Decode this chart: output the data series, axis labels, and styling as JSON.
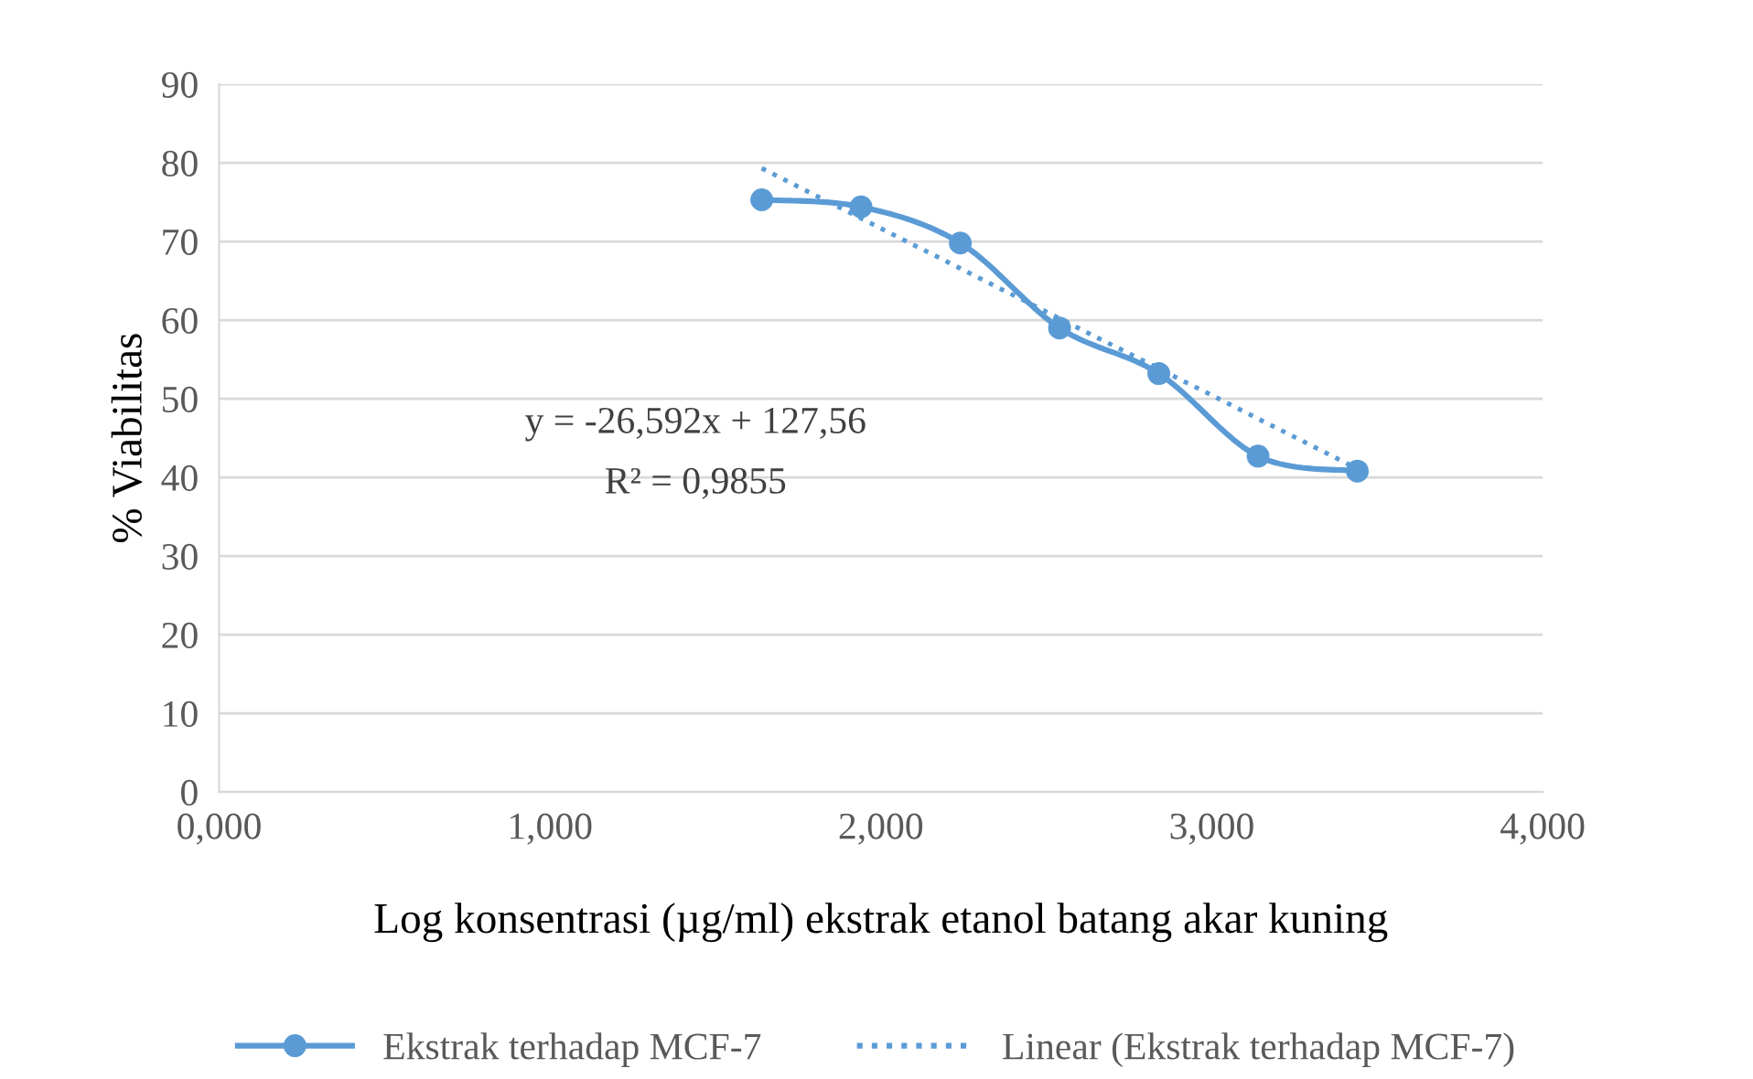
{
  "chart_data": {
    "type": "line",
    "xlabel": "Log konsentrasi (µg/ml) ekstrak etanol batang akar kuning",
    "ylabel": "% Viabilitas",
    "x": [
      1.64,
      1.94,
      2.24,
      2.54,
      2.84,
      3.14,
      3.44
    ],
    "series": [
      {
        "name": "Ekstrak terhadap MCF-7",
        "color": "#5b9bd5",
        "values": [
          75.3,
          74.4,
          69.8,
          59.0,
          53.2,
          42.7,
          40.8
        ],
        "marker": "circle",
        "line_style": "solid"
      },
      {
        "name": "Linear (Ekstrak terhadap MCF-7)",
        "type": "line",
        "color": "#5b9bd5",
        "x": [
          1.64,
          3.44
        ],
        "values": [
          79.3,
          41.1
        ],
        "marker": "none",
        "line_style": "dotted"
      }
    ],
    "annotations": [
      "y = -26,592x + 127,56",
      "R² = 0,9855"
    ],
    "xlim": [
      0,
      4
    ],
    "xticks": [
      {
        "value": 0,
        "label": "0,000"
      },
      {
        "value": 1,
        "label": "1,000"
      },
      {
        "value": 2,
        "label": "2,000"
      },
      {
        "value": 3,
        "label": "3,000"
      },
      {
        "value": 4,
        "label": "4,000"
      }
    ],
    "ylim": [
      0,
      90
    ],
    "yticks": [
      0,
      10,
      20,
      30,
      40,
      50,
      60,
      70,
      80,
      90
    ],
    "grid": "y",
    "legend": "bottom"
  }
}
